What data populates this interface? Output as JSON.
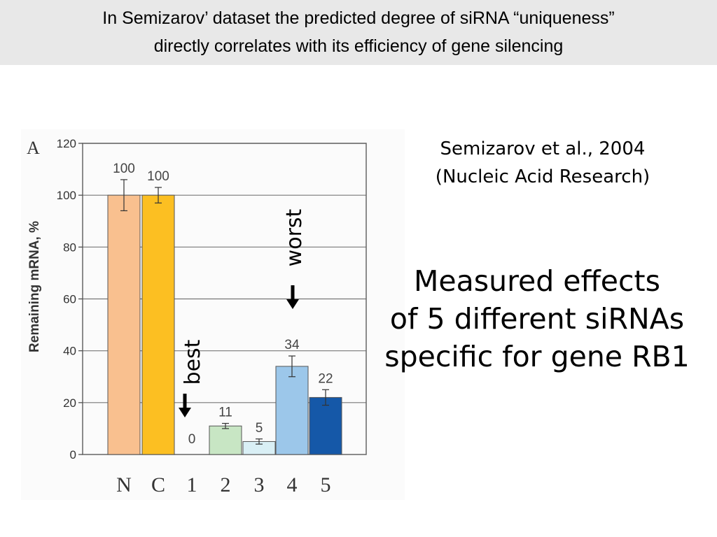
{
  "header": {
    "title_line_1": "In Semizarov’ dataset the predicted degree of siRNA “uniqueness”",
    "title_line_2": "directly correlates with its efficiency of gene silencing"
  },
  "citation": {
    "author_line": "Semizarov et al., 2004",
    "journal_line": "(Nucleic Acid Research)"
  },
  "caption": {
    "line_1": "Measured effects",
    "line_2": "of 5 different siRNAs",
    "line_3": "specific for gene RB1"
  },
  "chart_data": {
    "type": "bar",
    "panel_label": "A",
    "ylabel": "Remaining mRNA, %",
    "ylim": [
      0,
      120
    ],
    "yticks": [
      0,
      20,
      40,
      60,
      80,
      100,
      120
    ],
    "ytick_labels": [
      "0",
      "20",
      "40",
      "60",
      "80",
      "100",
      "120"
    ],
    "grid": true,
    "categories": [
      "N",
      "C",
      "1",
      "2",
      "3",
      "4",
      "5"
    ],
    "values": [
      100,
      100,
      0,
      11,
      5,
      34,
      22
    ],
    "value_labels": [
      "100",
      "100",
      "0",
      "11",
      "5",
      "34",
      "22"
    ],
    "errors": [
      6,
      3,
      0,
      1,
      1,
      4,
      3
    ],
    "colors": [
      "#f9c08f",
      "#fcbf22",
      "#ffffff",
      "#c8e6c4",
      "#d9eff5",
      "#9cc7ea",
      "#1558a8"
    ],
    "annotations": [
      {
        "text": "best",
        "category": "1",
        "arrow": "down"
      },
      {
        "text": "worst",
        "category": "4",
        "arrow": "down"
      }
    ]
  }
}
